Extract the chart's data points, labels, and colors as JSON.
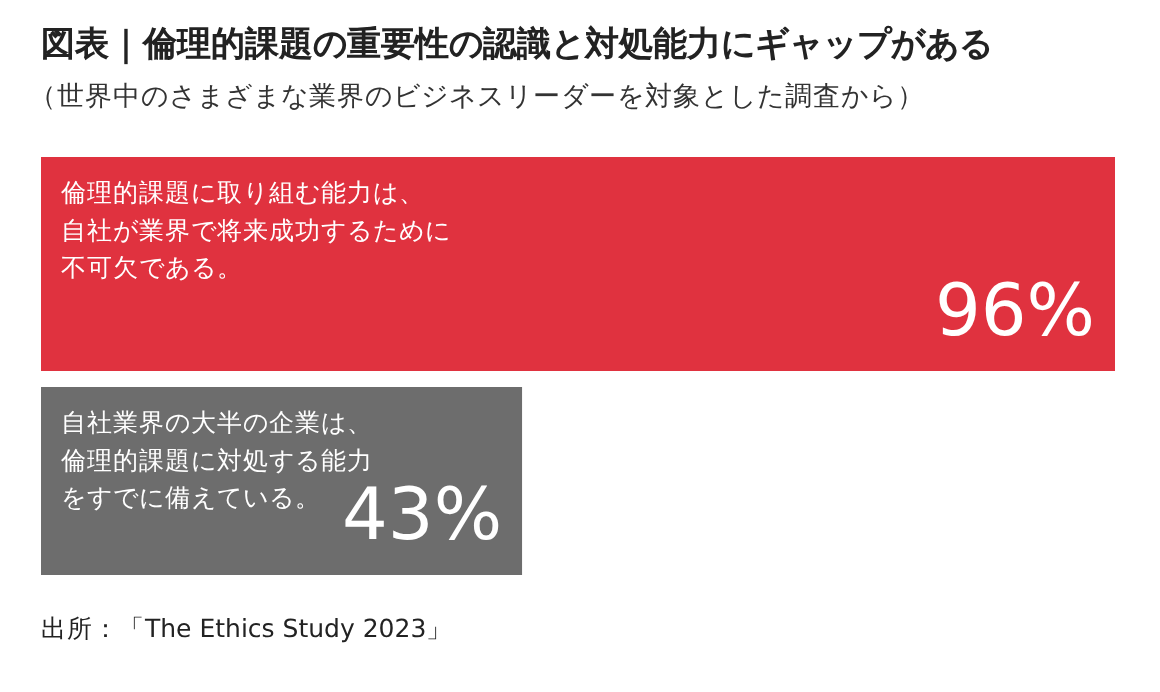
{
  "chart_data": {
    "type": "bar",
    "orientation": "horizontal",
    "title": "図表｜倫理的課題の重要性の認識と対処能力にギャップがある",
    "subtitle": "（世界中のさまざまな業界のビジネスリーダーを対象とした調査から）",
    "categories": [
      "倫理的課題に取り組む能力は、自社が業界で将来成功するために不可欠である。",
      "自社業界の大半の企業は、倫理的課題に対処する能力をすでに備えている。"
    ],
    "values": [
      96,
      43
    ],
    "colors": [
      "#e0323f",
      "#6d6d6d"
    ],
    "value_labels": [
      "96%",
      "43%"
    ],
    "annotations": [
      "出所：「The Ethics Study 2023」"
    ]
  }
}
